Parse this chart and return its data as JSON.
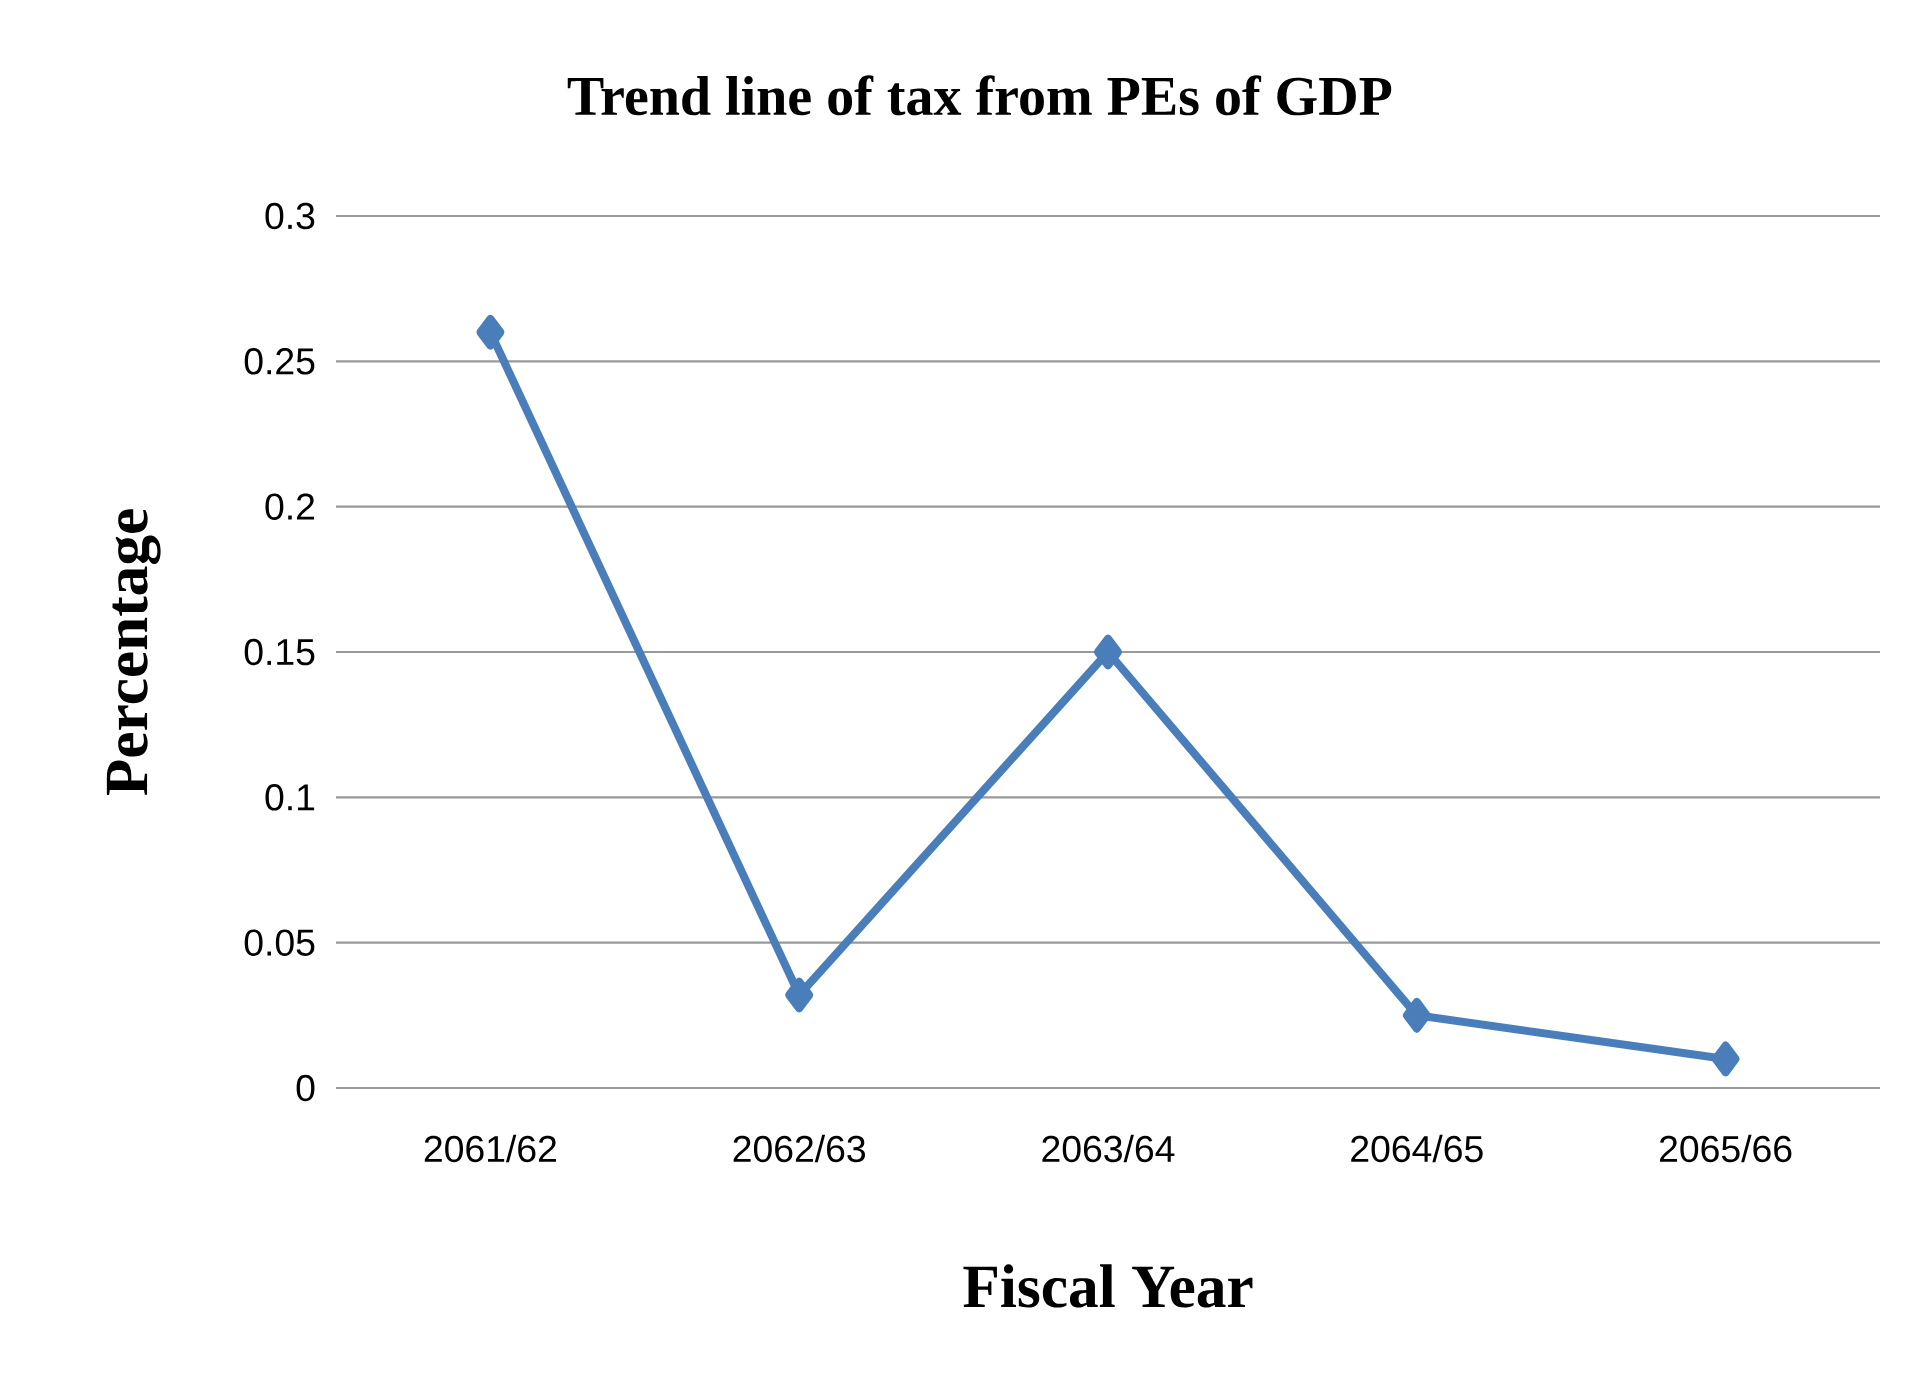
{
  "chart_data": {
    "type": "line",
    "title": "Trend line of tax from PEs of GDP",
    "xlabel": "Fiscal Year",
    "ylabel": "Percentage",
    "categories": [
      "2061/62",
      "2062/63",
      "2063/64",
      "2064/65",
      "2065/66"
    ],
    "series": [
      {
        "color": "#4a7ebb",
        "values": [
          0.26,
          0.032,
          0.15,
          0.025,
          0.01
        ]
      }
    ],
    "ylim": [
      0,
      0.3
    ],
    "yticks": [
      0,
      0.05,
      0.1,
      0.15,
      0.2,
      0.25,
      0.3
    ],
    "grid": "y",
    "marker": "diamond",
    "line_style": "solid"
  }
}
